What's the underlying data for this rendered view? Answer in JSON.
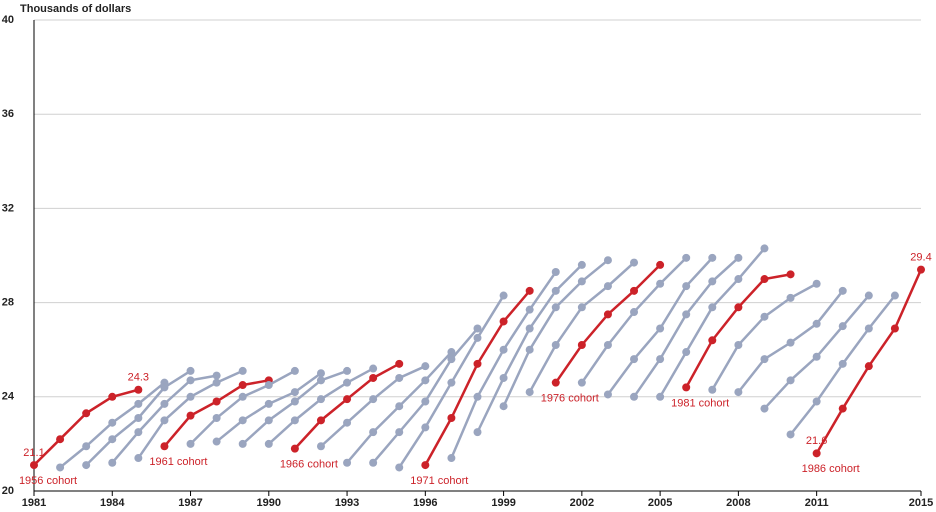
{
  "chart_data": {
    "type": "line",
    "y_axis_label": "Thousands of dollars",
    "xlim": [
      1981,
      2015
    ],
    "xticks": [
      1981,
      1984,
      1987,
      1990,
      1993,
      1996,
      1999,
      2002,
      2005,
      2008,
      2011,
      2015
    ],
    "ylim": [
      20,
      40
    ],
    "yticks": [
      20,
      24,
      28,
      32,
      36,
      40
    ],
    "grid": true,
    "series": [
      {
        "name": "1956 cohort",
        "color": "#cc2229",
        "x": [
          1981,
          1982,
          1983,
          1984,
          1985
        ],
        "values": [
          21.1,
          22.2,
          23.3,
          24.0,
          24.3
        ],
        "labels": [
          0,
          4
        ]
      },
      {
        "color": "#9aa5bf",
        "x": [
          1982,
          1983,
          1984,
          1985,
          1986
        ],
        "values": [
          21.0,
          21.9,
          22.9,
          23.7,
          24.6
        ]
      },
      {
        "color": "#9aa5bf",
        "x": [
          1983,
          1984,
          1985,
          1986,
          1987
        ],
        "values": [
          21.1,
          22.2,
          23.1,
          24.4,
          25.1
        ]
      },
      {
        "color": "#9aa5bf",
        "x": [
          1984,
          1985,
          1986,
          1987,
          1988
        ],
        "values": [
          21.2,
          22.5,
          23.7,
          24.7,
          24.9
        ]
      },
      {
        "color": "#9aa5bf",
        "x": [
          1985,
          1986,
          1987,
          1988,
          1989
        ],
        "values": [
          21.4,
          23.0,
          24.0,
          24.6,
          25.1
        ]
      },
      {
        "name": "1961 cohort",
        "color": "#cc2229",
        "x": [
          1986,
          1987,
          1988,
          1989,
          1990
        ],
        "values": [
          21.9,
          23.2,
          23.8,
          24.5,
          24.7
        ]
      },
      {
        "color": "#9aa5bf",
        "x": [
          1987,
          1988,
          1989,
          1990,
          1991
        ],
        "values": [
          22.0,
          23.1,
          24.0,
          24.5,
          25.1
        ]
      },
      {
        "color": "#9aa5bf",
        "x": [
          1988,
          1989,
          1990,
          1991,
          1992
        ],
        "values": [
          22.1,
          23.0,
          23.7,
          24.2,
          25.0
        ]
      },
      {
        "color": "#9aa5bf",
        "x": [
          1989,
          1990,
          1991,
          1992,
          1993
        ],
        "values": [
          22.0,
          23.0,
          23.8,
          24.7,
          25.1
        ]
      },
      {
        "color": "#9aa5bf",
        "x": [
          1990,
          1991,
          1992,
          1993,
          1994
        ],
        "values": [
          22.0,
          23.0,
          23.9,
          24.6,
          25.2
        ]
      },
      {
        "name": "1966 cohort",
        "color": "#cc2229",
        "x": [
          1991,
          1992,
          1993,
          1994,
          1995
        ],
        "values": [
          21.8,
          23.0,
          23.9,
          24.8,
          25.4
        ]
      },
      {
        "color": "#9aa5bf",
        "x": [
          1992,
          1993,
          1994,
          1995,
          1996
        ],
        "values": [
          21.9,
          22.9,
          23.9,
          24.8,
          25.3
        ]
      },
      {
        "color": "#9aa5bf",
        "x": [
          1993,
          1994,
          1995,
          1996,
          1997
        ],
        "values": [
          21.2,
          22.5,
          23.6,
          24.7,
          25.9
        ]
      },
      {
        "color": "#9aa5bf",
        "x": [
          1994,
          1995,
          1996,
          1997,
          1998
        ],
        "values": [
          21.2,
          22.5,
          23.8,
          25.6,
          26.9
        ]
      },
      {
        "color": "#9aa5bf",
        "x": [
          1995,
          1996,
          1997,
          1998,
          1999
        ],
        "values": [
          21.0,
          22.7,
          24.6,
          26.5,
          28.3
        ]
      },
      {
        "name": "1971 cohort",
        "color": "#cc2229",
        "x": [
          1996,
          1997,
          1998,
          1999,
          2000
        ],
        "values": [
          21.1,
          23.1,
          25.4,
          27.2,
          28.5
        ]
      },
      {
        "color": "#9aa5bf",
        "x": [
          1997,
          1998,
          1999,
          2000,
          2001
        ],
        "values": [
          21.4,
          24.0,
          26.0,
          27.7,
          29.3
        ]
      },
      {
        "color": "#9aa5bf",
        "x": [
          1998,
          1999,
          2000,
          2001,
          2002
        ],
        "values": [
          22.5,
          24.8,
          26.9,
          28.5,
          29.6
        ]
      },
      {
        "color": "#9aa5bf",
        "x": [
          1999,
          2000,
          2001,
          2002,
          2003
        ],
        "values": [
          23.6,
          26.0,
          27.8,
          28.9,
          29.8
        ]
      },
      {
        "color": "#9aa5bf",
        "x": [
          2000,
          2001,
          2002,
          2003,
          2004
        ],
        "values": [
          24.2,
          26.2,
          27.8,
          28.7,
          29.7
        ]
      },
      {
        "name": "1976 cohort",
        "color": "#cc2229",
        "x": [
          2001,
          2002,
          2003,
          2004,
          2005
        ],
        "values": [
          24.6,
          26.2,
          27.5,
          28.5,
          29.6
        ]
      },
      {
        "color": "#9aa5bf",
        "x": [
          2002,
          2003,
          2004,
          2005,
          2006
        ],
        "values": [
          24.6,
          26.2,
          27.6,
          28.8,
          29.9
        ]
      },
      {
        "color": "#9aa5bf",
        "x": [
          2003,
          2004,
          2005,
          2006,
          2007
        ],
        "values": [
          24.1,
          25.6,
          26.9,
          28.7,
          29.9
        ]
      },
      {
        "color": "#9aa5bf",
        "x": [
          2004,
          2005,
          2006,
          2007,
          2008
        ],
        "values": [
          24.0,
          25.6,
          27.5,
          28.9,
          29.9
        ]
      },
      {
        "color": "#9aa5bf",
        "x": [
          2005,
          2006,
          2007,
          2008,
          2009
        ],
        "values": [
          24.0,
          25.9,
          27.8,
          29.0,
          30.3
        ]
      },
      {
        "name": "1981 cohort",
        "color": "#cc2229",
        "x": [
          2006,
          2007,
          2008,
          2009,
          2010
        ],
        "values": [
          24.4,
          26.4,
          27.8,
          29.0,
          29.2
        ]
      },
      {
        "color": "#9aa5bf",
        "x": [
          2007,
          2008,
          2009,
          2010,
          2011
        ],
        "values": [
          24.3,
          26.2,
          27.4,
          28.2,
          28.8
        ]
      },
      {
        "color": "#9aa5bf",
        "x": [
          2008,
          2009,
          2010,
          2011,
          2012
        ],
        "values": [
          24.2,
          25.6,
          26.3,
          27.1,
          28.5
        ]
      },
      {
        "color": "#9aa5bf",
        "x": [
          2009,
          2010,
          2011,
          2012,
          2013
        ],
        "values": [
          23.5,
          24.7,
          25.7,
          27.0,
          28.3
        ]
      },
      {
        "color": "#9aa5bf",
        "x": [
          2010,
          2011,
          2012,
          2013,
          2014
        ],
        "values": [
          22.4,
          23.8,
          25.4,
          26.9,
          28.3
        ]
      },
      {
        "name": "1986 cohort",
        "color": "#cc2229",
        "x": [
          2011,
          2012,
          2013,
          2014,
          2015
        ],
        "values": [
          21.6,
          23.5,
          25.3,
          26.9,
          29.4
        ],
        "labels": [
          0,
          4
        ]
      }
    ]
  }
}
